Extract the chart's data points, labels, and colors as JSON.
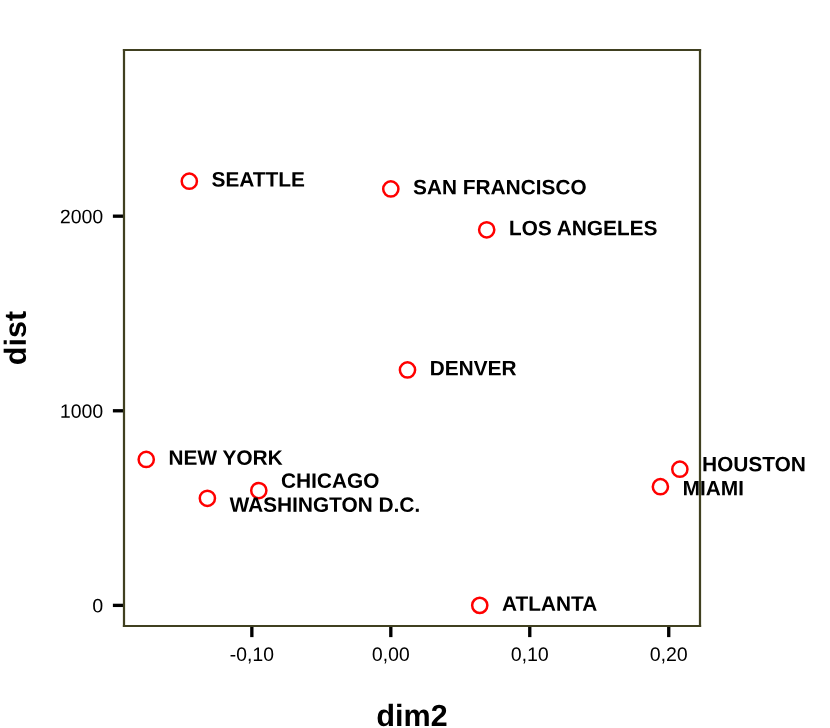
{
  "chart_data": {
    "type": "scatter",
    "xlabel": "dim2",
    "ylabel": "dist",
    "x": [
      -0.145,
      0.0,
      0.069,
      0.012,
      -0.176,
      -0.095,
      -0.132,
      0.208,
      0.194,
      0.064
    ],
    "series": [
      {
        "color": "#ff0000",
        "values": [
          2180,
          2140,
          1930,
          1210,
          750,
          590,
          550,
          700,
          610,
          0
        ]
      }
    ],
    "marker": "circle",
    "annotations": [
      {
        "text": "SEATTLE",
        "x": -0.145,
        "y": 2180
      },
      {
        "text": "SAN FRANCISCO",
        "x": 0.0,
        "y": 2140
      },
      {
        "text": "LOS ANGELES",
        "x": 0.069,
        "y": 1930
      },
      {
        "text": "DENVER",
        "x": 0.012,
        "y": 1210
      },
      {
        "text": "NEW YORK",
        "x": -0.176,
        "y": 750
      },
      {
        "text": "CHICAGO",
        "x": -0.095,
        "y": 590
      },
      {
        "text": "WASHINGTON D.C.",
        "x": -0.132,
        "y": 550
      },
      {
        "text": "HOUSTON",
        "x": 0.208,
        "y": 700
      },
      {
        "text": "MIAMI",
        "x": 0.194,
        "y": 610
      },
      {
        "text": "ATLANTA",
        "x": 0.064,
        "y": 0
      }
    ],
    "xlim": [
      -0.192,
      0.2225
    ],
    "ylim": [
      -106,
      2854
    ],
    "xticks": [
      {
        "value": -0.1,
        "label": "-0,10"
      },
      {
        "value": 0.0,
        "label": "0,00"
      },
      {
        "value": 0.1,
        "label": "0,10"
      },
      {
        "value": 0.2,
        "label": "0,20"
      }
    ],
    "yticks": [
      0,
      1000,
      2000
    ],
    "grid": false,
    "legend": false
  }
}
